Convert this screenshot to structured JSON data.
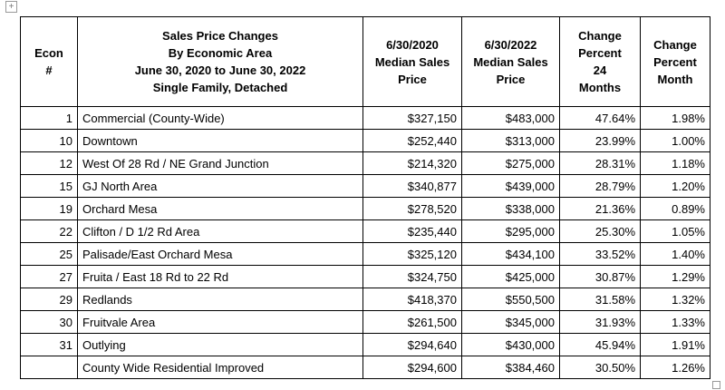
{
  "table": {
    "header": [
      [
        "Econ",
        "#"
      ],
      [
        "Sales Price Changes",
        "By Economic Area",
        "June 30, 2020 to June 30, 2022",
        "Single Family, Detached"
      ],
      [
        "6/30/2020",
        "Median Sales",
        "Price"
      ],
      [
        "6/30/2022",
        "Median Sales",
        "Price"
      ],
      [
        "Change",
        "Percent",
        "24",
        "Months"
      ],
      [
        "Change",
        "Percent",
        "Month"
      ]
    ],
    "rows": [
      [
        "1",
        "Commercial  (County-Wide)",
        "$327,150",
        "$483,000",
        "47.64%",
        "1.98%"
      ],
      [
        "10",
        "Downtown",
        "$252,440",
        "$313,000",
        "23.99%",
        "1.00%"
      ],
      [
        "12",
        "West Of 28 Rd / NE Grand Junction",
        "$214,320",
        "$275,000",
        "28.31%",
        "1.18%"
      ],
      [
        "15",
        "GJ North Area",
        "$340,877",
        "$439,000",
        "28.79%",
        "1.20%"
      ],
      [
        "19",
        "Orchard Mesa",
        "$278,520",
        "$338,000",
        "21.36%",
        "0.89%"
      ],
      [
        "22",
        "Clifton / D 1/2 Rd Area",
        "$235,440",
        "$295,000",
        "25.30%",
        "1.05%"
      ],
      [
        "25",
        "Palisade/East Orchard Mesa",
        "$325,120",
        "$434,100",
        "33.52%",
        "1.40%"
      ],
      [
        "27",
        "Fruita / East 18 Rd to 22 Rd",
        "$324,750",
        "$425,000",
        "30.87%",
        "1.29%"
      ],
      [
        "29",
        "Redlands",
        "$418,370",
        "$550,500",
        "31.58%",
        "1.32%"
      ],
      [
        "30",
        "Fruitvale Area",
        "$261,500",
        "$345,000",
        "31.93%",
        "1.33%"
      ],
      [
        "31",
        "Outlying",
        "$294,640",
        "$430,000",
        "45.94%",
        "1.91%"
      ],
      [
        null,
        "County Wide Residential Improved",
        "$294,600",
        "$384,460",
        "30.50%",
        "1.26%"
      ]
    ]
  }
}
